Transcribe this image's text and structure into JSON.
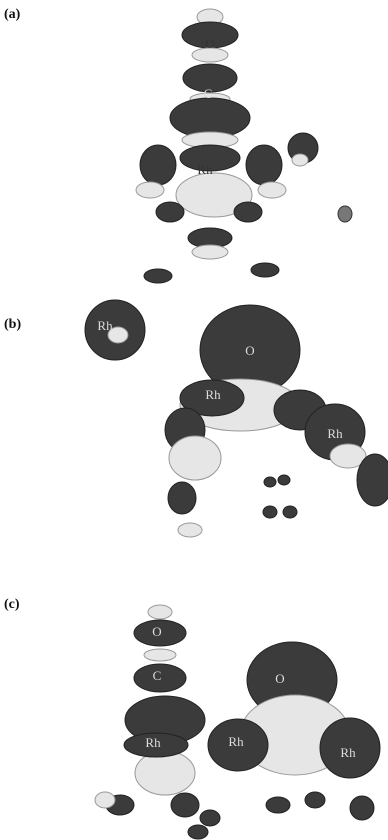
{
  "panels": [
    {
      "label": "(a)",
      "atoms": [
        "O",
        "C",
        "Rh"
      ]
    },
    {
      "label": "(b)",
      "atoms": [
        "Rh",
        "O",
        "Rh",
        "Rh"
      ]
    },
    {
      "label": "(c)",
      "atoms": [
        "O",
        "C",
        "Rh",
        "Rh",
        "O",
        "Rh"
      ]
    }
  ]
}
